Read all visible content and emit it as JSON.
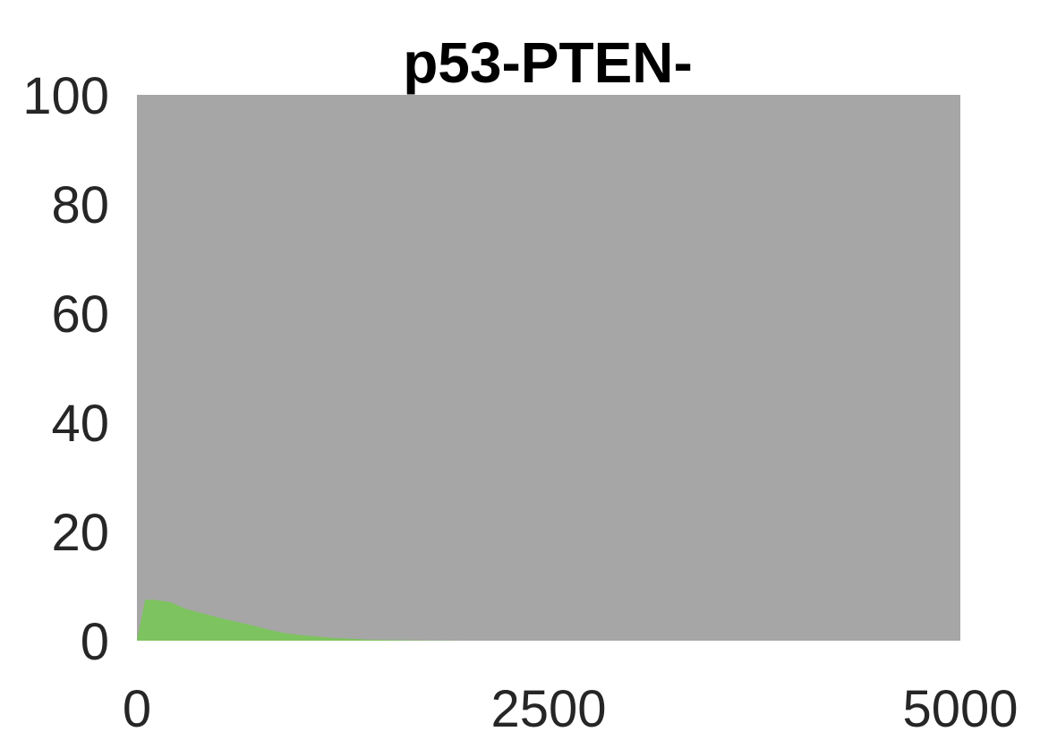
{
  "chart_data": {
    "type": "area",
    "title": "p53-PTEN-",
    "xlabel": "",
    "ylabel": "",
    "xlim": [
      0,
      5000
    ],
    "ylim": [
      0,
      100
    ],
    "x_ticks": [
      {
        "value": 0,
        "label": "0"
      },
      {
        "value": 2500,
        "label": "2500"
      },
      {
        "value": 5000,
        "label": "5000"
      }
    ],
    "y_ticks": [
      {
        "value": 0,
        "label": "0"
      },
      {
        "value": 20,
        "label": "20"
      },
      {
        "value": 40,
        "label": "40"
      },
      {
        "value": 60,
        "label": "60"
      },
      {
        "value": 80,
        "label": "80"
      },
      {
        "value": 100,
        "label": "100"
      }
    ],
    "grid": false,
    "legend": "none",
    "series": [
      {
        "color": "#7dc35f",
        "x": [
          0,
          50,
          100,
          200,
          300,
          400,
          500,
          600,
          700,
          800,
          900,
          1000,
          1200,
          1400,
          1600,
          1800,
          2000,
          5000
        ],
        "values": [
          0,
          7.5,
          7.5,
          7.1,
          5.8,
          5.0,
          4.2,
          3.5,
          2.8,
          2.0,
          1.4,
          1.0,
          0.5,
          0.2,
          0.1,
          0.05,
          0,
          0
        ]
      },
      {
        "color": "#a6a6a6",
        "x": [
          0,
          5000
        ],
        "values": [
          100,
          100
        ]
      }
    ]
  }
}
